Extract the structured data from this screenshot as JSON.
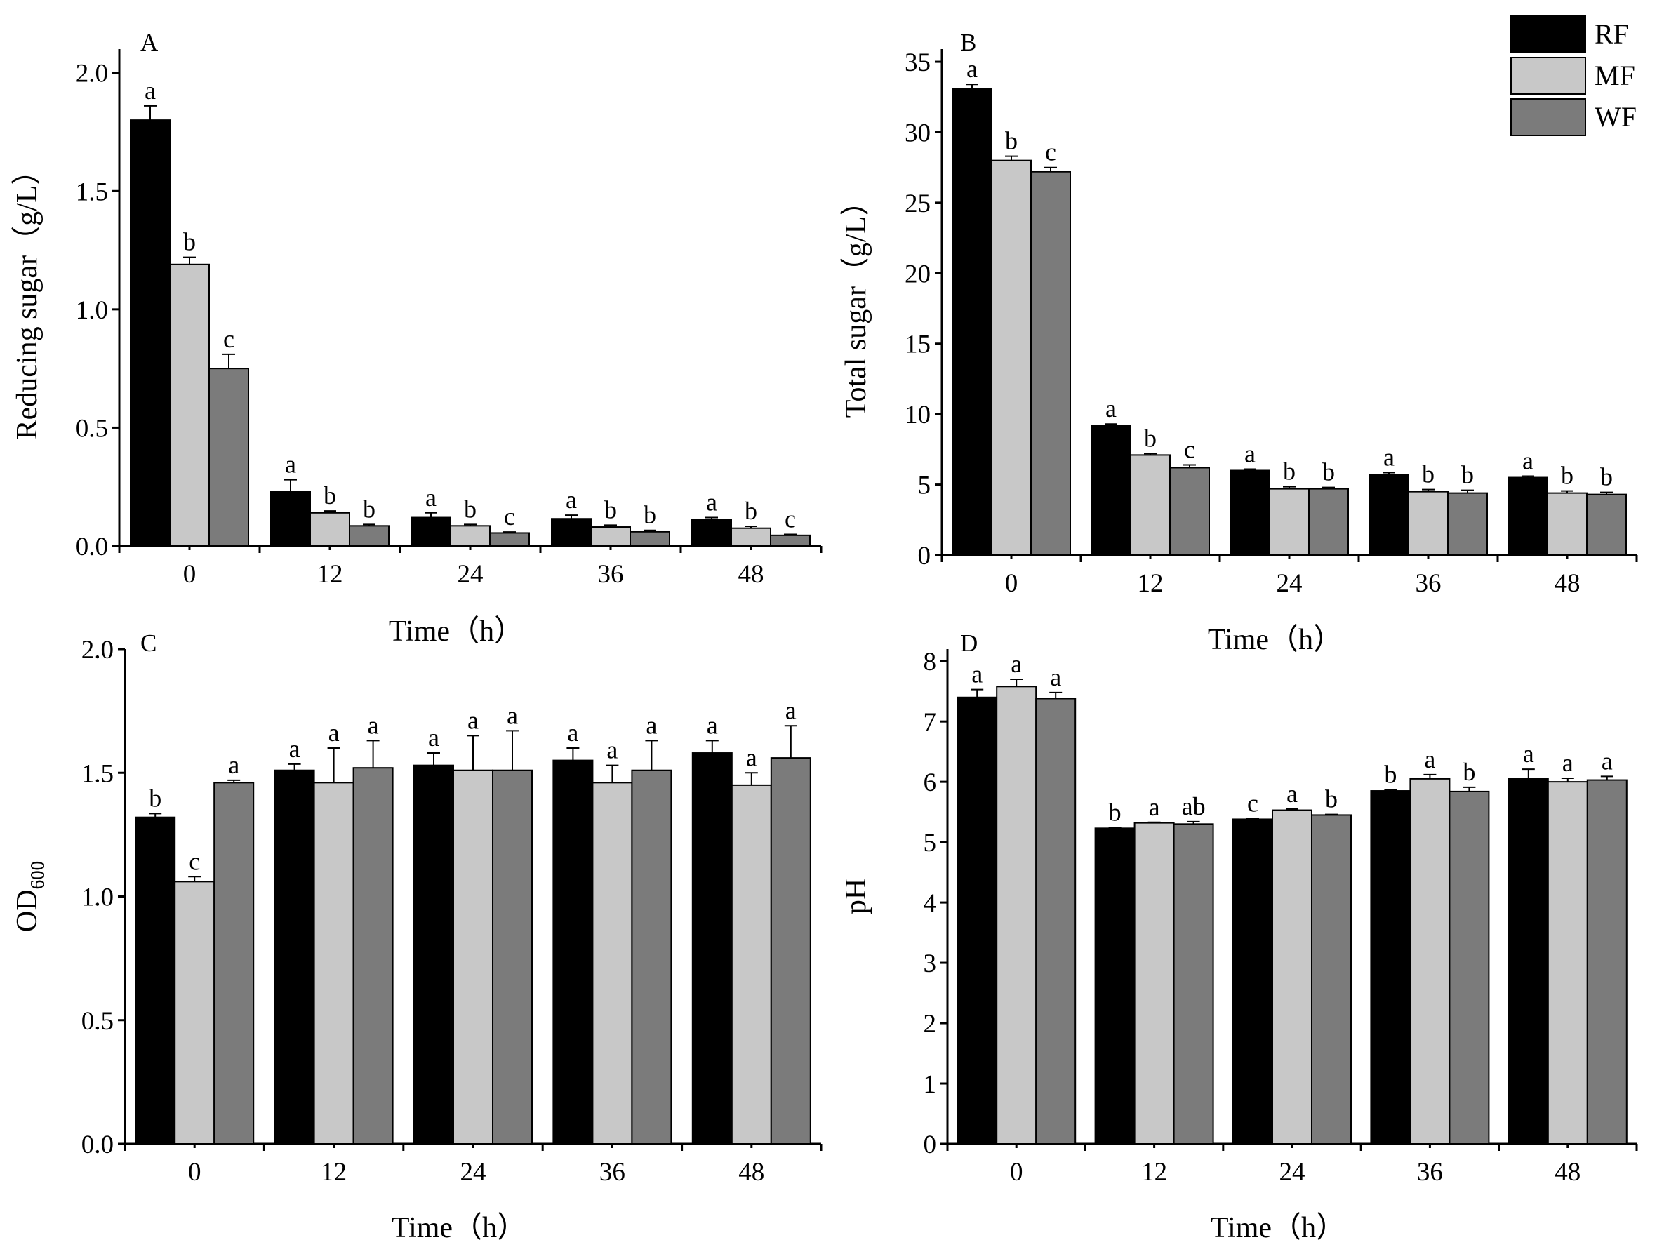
{
  "colors": {
    "RF": "#000000",
    "MF": "#c8c8c8",
    "WF": "#7b7b7b"
  },
  "legend": [
    {
      "key": "RF",
      "label": "RF"
    },
    {
      "key": "MF",
      "label": "MF"
    },
    {
      "key": "WF",
      "label": "WF"
    }
  ],
  "chart_data": [
    {
      "panel": "A",
      "type": "bar",
      "ylabel": "Reducing sugar（g/L）",
      "xlabel": "Time（h）",
      "categories": [
        "0",
        "12",
        "24",
        "36",
        "48"
      ],
      "ylim": [
        0,
        2.1
      ],
      "yticks": [
        0.0,
        0.5,
        1.0,
        1.5,
        2.0
      ],
      "ytick_labels": [
        "0.0",
        "0.5",
        "1.0",
        "1.5",
        "2.0"
      ],
      "series": [
        {
          "name": "RF",
          "values": [
            1.8,
            0.23,
            0.12,
            0.115,
            0.11
          ],
          "errors": [
            0.06,
            0.05,
            0.02,
            0.015,
            0.01
          ],
          "letters": [
            "a",
            "a",
            "a",
            "a",
            "a"
          ]
        },
        {
          "name": "MF",
          "values": [
            1.19,
            0.14,
            0.085,
            0.08,
            0.075
          ],
          "errors": [
            0.03,
            0.008,
            0.006,
            0.008,
            0.008
          ],
          "letters": [
            "b",
            "b",
            "b",
            "b",
            "b"
          ]
        },
        {
          "name": "WF",
          "values": [
            0.75,
            0.085,
            0.055,
            0.06,
            0.045
          ],
          "errors": [
            0.06,
            0.006,
            0.004,
            0.006,
            0.004
          ],
          "letters": [
            "c",
            "b",
            "c",
            "b",
            "c"
          ]
        }
      ]
    },
    {
      "panel": "B",
      "type": "bar",
      "ylabel": "Total sugar（g/L）",
      "xlabel": "Time（h）",
      "categories": [
        "0",
        "12",
        "24",
        "36",
        "48"
      ],
      "ylim": [
        0,
        35.9
      ],
      "yticks": [
        0,
        5,
        10,
        15,
        20,
        25,
        30,
        35
      ],
      "ytick_labels": [
        "0",
        "5",
        "10",
        "15",
        "20",
        "25",
        "30",
        "35"
      ],
      "series": [
        {
          "name": "RF",
          "values": [
            33.1,
            9.2,
            6.0,
            5.7,
            5.5
          ],
          "errors": [
            0.3,
            0.1,
            0.1,
            0.15,
            0.1
          ],
          "letters": [
            "a",
            "a",
            "a",
            "a",
            "a"
          ]
        },
        {
          "name": "MF",
          "values": [
            28.0,
            7.1,
            4.7,
            4.5,
            4.4
          ],
          "errors": [
            0.3,
            0.1,
            0.15,
            0.15,
            0.15
          ],
          "letters": [
            "b",
            "b",
            "b",
            "b",
            "b"
          ]
        },
        {
          "name": "WF",
          "values": [
            27.2,
            6.2,
            4.7,
            4.4,
            4.3
          ],
          "errors": [
            0.3,
            0.2,
            0.1,
            0.2,
            0.15
          ],
          "letters": [
            "c",
            "c",
            "b",
            "b",
            "b"
          ]
        }
      ]
    },
    {
      "panel": "C",
      "type": "bar",
      "ylabel": "OD",
      "ylabel_sub": "600",
      "xlabel": "Time（h）",
      "categories": [
        "0",
        "12",
        "24",
        "36",
        "48"
      ],
      "ylim": [
        0,
        2.0
      ],
      "yticks": [
        0.0,
        0.5,
        1.0,
        1.5,
        2.0
      ],
      "ytick_labels": [
        "0.0",
        "0.5",
        "1.0",
        "1.5",
        "2.0"
      ],
      "series": [
        {
          "name": "RF",
          "values": [
            1.32,
            1.51,
            1.53,
            1.55,
            1.58
          ],
          "errors": [
            0.015,
            0.025,
            0.05,
            0.05,
            0.05
          ],
          "letters": [
            "b",
            "a",
            "a",
            "a",
            "a"
          ]
        },
        {
          "name": "MF",
          "values": [
            1.06,
            1.46,
            1.51,
            1.46,
            1.45
          ],
          "errors": [
            0.02,
            0.14,
            0.14,
            0.07,
            0.05
          ],
          "letters": [
            "c",
            "a",
            "a",
            "a",
            "a"
          ]
        },
        {
          "name": "WF",
          "values": [
            1.46,
            1.52,
            1.51,
            1.51,
            1.56
          ],
          "errors": [
            0.01,
            0.11,
            0.16,
            0.12,
            0.13
          ],
          "letters": [
            "a",
            "a",
            "a",
            "a",
            "a"
          ]
        }
      ]
    },
    {
      "panel": "D",
      "type": "bar",
      "ylabel": "pH",
      "xlabel": "Time（h）",
      "categories": [
        "0",
        "12",
        "24",
        "36",
        "48"
      ],
      "ylim": [
        0,
        8.2
      ],
      "yticks": [
        0,
        1,
        2,
        3,
        4,
        5,
        6,
        7,
        8
      ],
      "ytick_labels": [
        "0",
        "1",
        "2",
        "3",
        "4",
        "5",
        "6",
        "7",
        "8"
      ],
      "series": [
        {
          "name": "RF",
          "values": [
            7.4,
            5.23,
            5.38,
            5.85,
            6.05
          ],
          "errors": [
            0.13,
            0.01,
            0.01,
            0.02,
            0.16
          ],
          "letters": [
            "a",
            "b",
            "c",
            "b",
            "a"
          ]
        },
        {
          "name": "MF",
          "values": [
            7.58,
            5.32,
            5.53,
            6.05,
            6.0
          ],
          "errors": [
            0.12,
            0.01,
            0.02,
            0.07,
            0.06
          ],
          "letters": [
            "a",
            "a",
            "a",
            "a",
            "a"
          ]
        },
        {
          "name": "WF",
          "values": [
            7.38,
            5.3,
            5.45,
            5.84,
            6.03
          ],
          "errors": [
            0.1,
            0.04,
            0.01,
            0.07,
            0.06
          ],
          "letters": [
            "a",
            "ab",
            "b",
            "b",
            "a"
          ]
        }
      ]
    }
  ]
}
